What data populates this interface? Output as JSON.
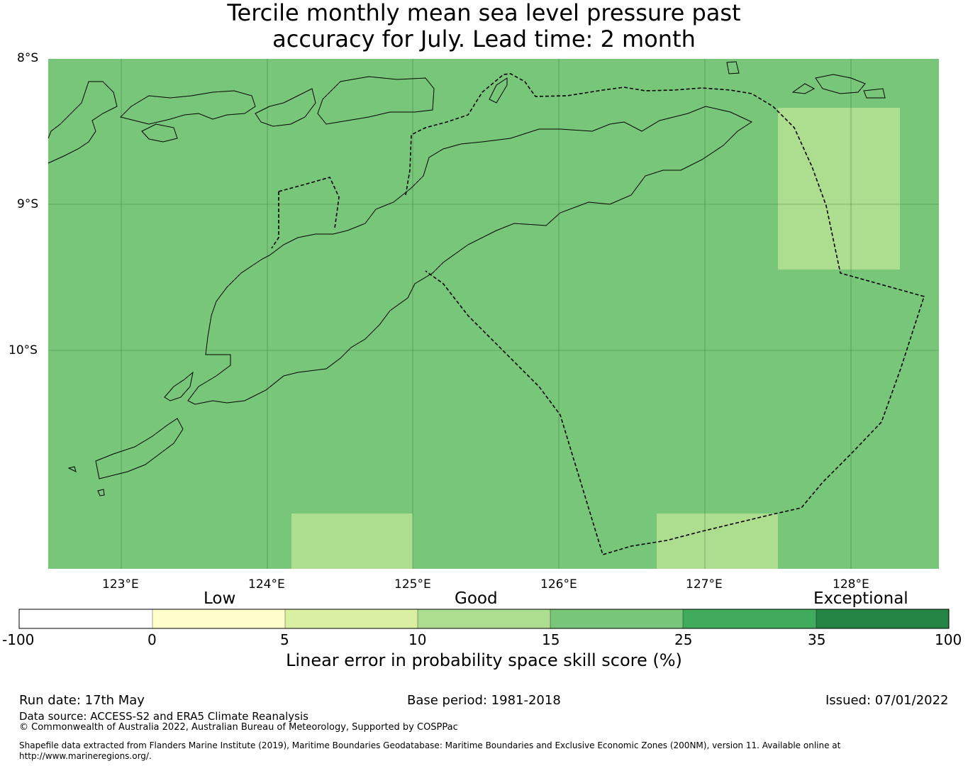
{
  "title": {
    "line1": "Tercile monthly mean sea level pressure past",
    "line2": "accuracy for July. Lead time: 2 month"
  },
  "map": {
    "lon_labels": [
      "123°E",
      "124°E",
      "125°E",
      "126°E",
      "127°E",
      "128°E"
    ],
    "lat_labels": [
      "8°S",
      "9°S",
      "10°S"
    ],
    "background_category_color": "#78c679",
    "highlight_color": "#addd8e",
    "gridlines": true,
    "coastlines": true,
    "eez_boundary": "dashed"
  },
  "colorbar": {
    "categories": [
      "Low",
      "Good",
      "Exceptional"
    ],
    "ticks": [
      "-100",
      "0",
      "5",
      "10",
      "15",
      "25",
      "35",
      "100"
    ],
    "colors": [
      "#ffffff",
      "#ffffcc",
      "#d9f0a3",
      "#addd8e",
      "#78c679",
      "#41ab5d",
      "#238443"
    ],
    "label": "Linear error in probability space skill score (%)"
  },
  "footer": {
    "run_date": "Run date: 17th May",
    "base_period": "Base period: 1981-2018",
    "issued": "Issued: 07/01/2022",
    "data_source": "Data source: ACCESS-S2 and ERA5 Climate Reanalysis",
    "copyright": "© Commonwealth of Australia 2022, Australian Bureau of Meteorology, Supported by COSPPac",
    "shapefile_line1": "Shapefile data extracted from Flanders Marine Institute (2019), Maritime Boundaries Geodatabase: Maritime Boundaries and Exclusive Economic Zones (200NM), version 11. Available online at",
    "shapefile_line2": "http://www.marineregions.org/."
  }
}
